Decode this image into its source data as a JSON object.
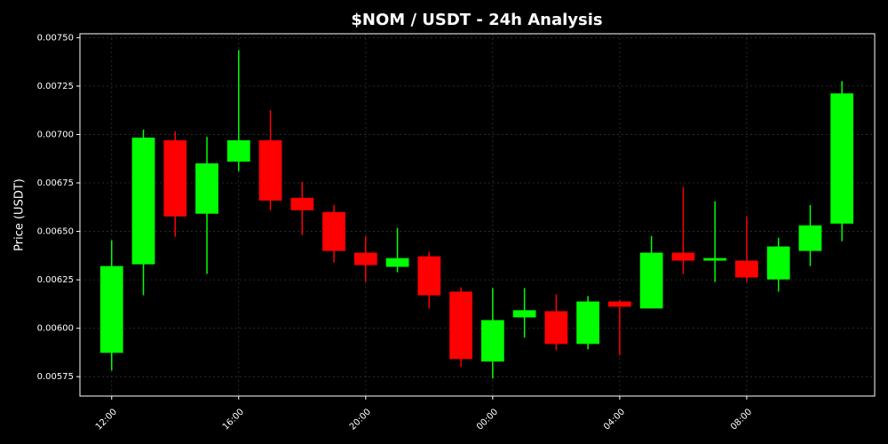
{
  "chart_data": {
    "type": "candlestick",
    "title": "$NOM / USDT - 24h Analysis",
    "y_label": "Price (USDT)",
    "categories": [
      "12:00",
      null,
      null,
      null,
      "16:00",
      null,
      null,
      null,
      "20:00",
      null,
      null,
      null,
      "00:00",
      null,
      null,
      null,
      "04:00",
      null,
      null,
      null,
      "08:00",
      null,
      null,
      null
    ],
    "open": [
      0.005873,
      0.00633,
      0.00697,
      0.006591,
      0.00686,
      0.00697,
      0.006673,
      0.0066,
      0.00639,
      0.006317,
      0.006371,
      0.006189,
      0.005828,
      0.006056,
      0.006088,
      0.005919,
      0.006138,
      0.006102,
      0.00639,
      0.006349,
      0.006349,
      0.006252,
      0.006399,
      0.00654
    ],
    "high": [
      0.006454,
      0.007025,
      0.007016,
      0.006988,
      0.007436,
      0.007125,
      0.006755,
      0.006636,
      0.006476,
      0.006518,
      0.006394,
      0.006211,
      0.006207,
      0.006207,
      0.006175,
      0.006166,
      0.006147,
      0.006476,
      0.006728,
      0.006655,
      0.006577,
      0.006467,
      0.006636,
      0.007276
    ],
    "low": [
      0.005782,
      0.00617,
      0.006472,
      0.00628,
      0.00681,
      0.006609,
      0.006481,
      0.006339,
      0.006239,
      0.006289,
      0.006102,
      0.0058,
      0.005741,
      0.005951,
      0.005887,
      0.005892,
      0.00586,
      0.006102,
      0.00628,
      0.006239,
      0.006239,
      0.006189,
      0.006321,
      0.006449
    ],
    "close": [
      0.006321,
      0.006984,
      0.006577,
      0.006851,
      0.00697,
      0.006659,
      0.006609,
      0.006399,
      0.006326,
      0.006362,
      0.00617,
      0.005841,
      0.006042,
      0.006093,
      0.005919,
      0.006138,
      0.006111,
      0.00639,
      0.006349,
      0.006362,
      0.006262,
      0.006422,
      0.006531,
      0.007212
    ],
    "up_color": "#00ff00",
    "down_color": "#ff0000",
    "ylim": [
      0.00565,
      0.00752
    ],
    "yticks": [
      0.00575,
      {
        "value": 0.006,
        "label": "0.00600"
      },
      0.00625,
      {
        "value": 0.0065,
        "label": "0.00650"
      },
      0.00675,
      {
        "value": 0.007,
        "label": "0.00700"
      },
      0.00725,
      {
        "value": 0.0075,
        "label": "0.00750"
      }
    ],
    "grid": true
  }
}
